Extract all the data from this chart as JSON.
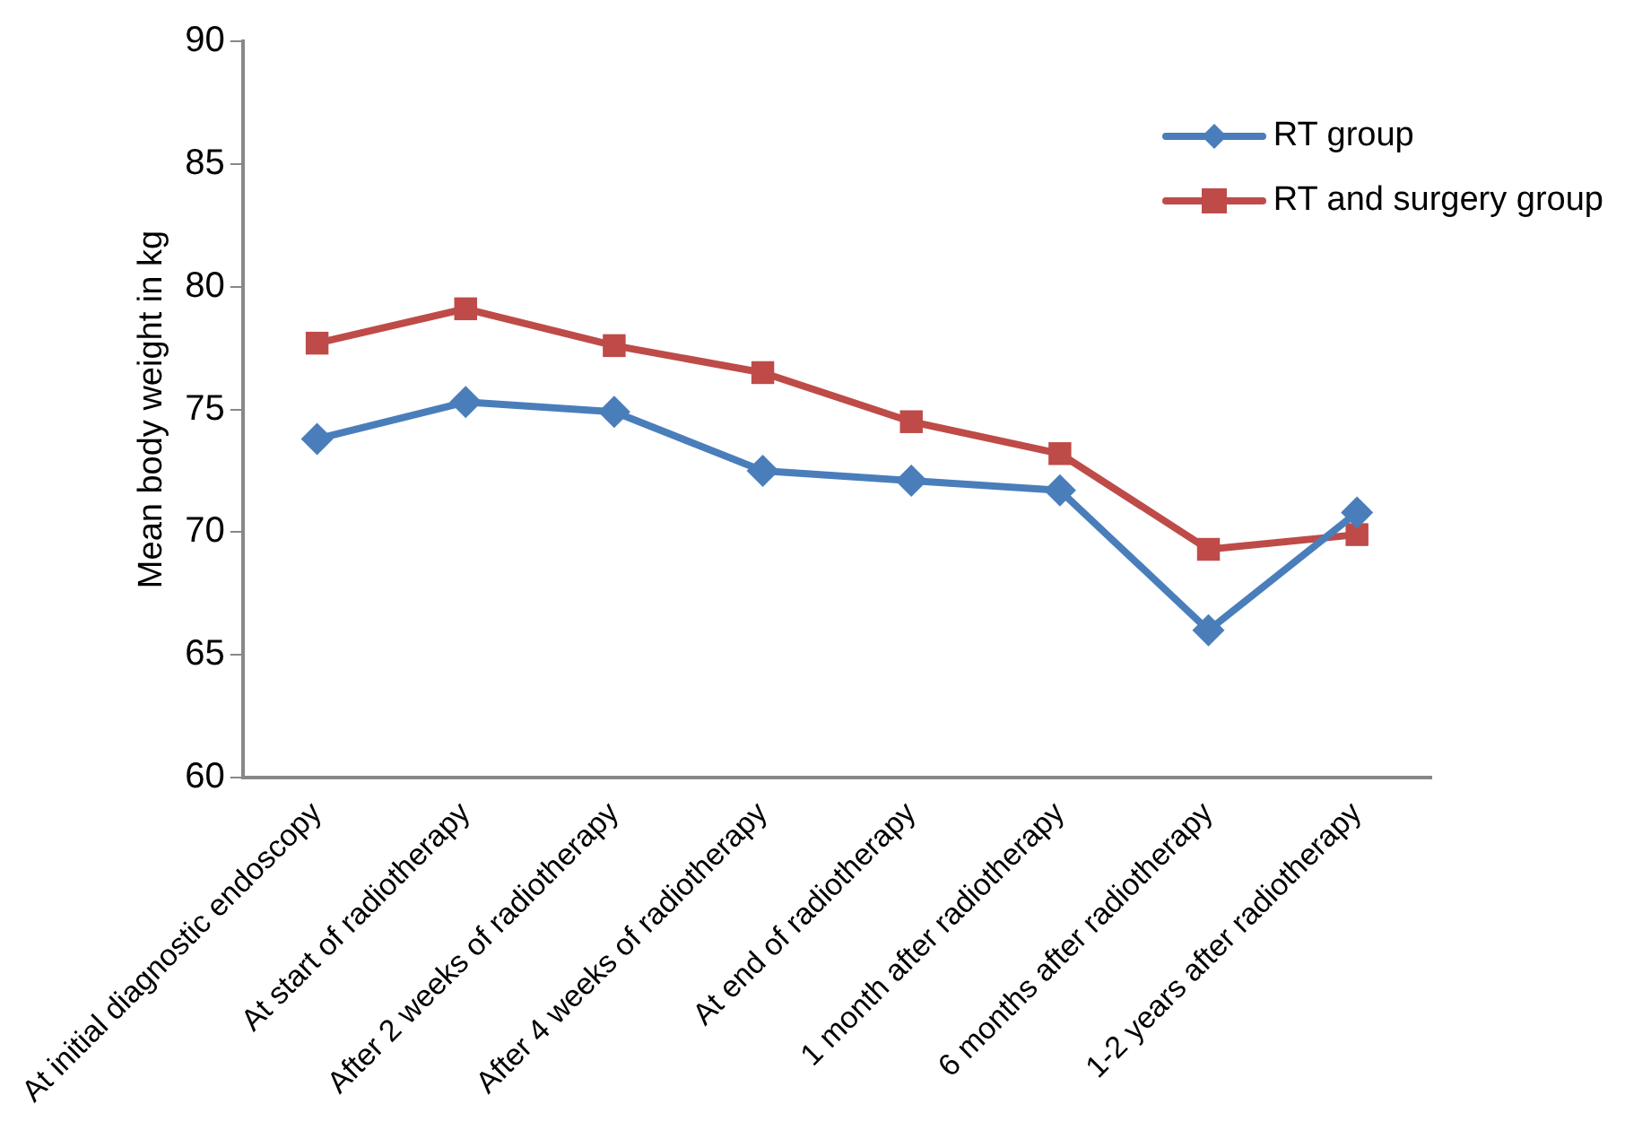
{
  "chart_data": {
    "type": "line",
    "ylabel": "Mean body weight in kg",
    "categories": [
      "At initial diagnostic endoscopy",
      "At start of radiotherapy",
      "After 2 weeks of radiotherapy",
      "After 4 weeks of radiotherapy",
      "At end of radiotherapy",
      "1 month after radiotherapy",
      "6 months after radiotherapy",
      "1-2 years after radiotherapy"
    ],
    "series": [
      {
        "name": "RT group",
        "color": "#4a7ebb",
        "marker": "diamond",
        "values": [
          73.8,
          75.3,
          74.9,
          72.5,
          72.1,
          71.7,
          66.0,
          70.8
        ]
      },
      {
        "name": "RT and surgery group",
        "color": "#be4b48",
        "marker": "square",
        "values": [
          77.7,
          79.1,
          77.6,
          76.5,
          74.5,
          73.2,
          69.3,
          69.9
        ]
      }
    ],
    "ylim": [
      60,
      90
    ],
    "yticks": [
      60,
      65,
      70,
      75,
      80,
      85,
      90
    ],
    "grid": false,
    "legend": "top right",
    "line_style": "solid"
  }
}
